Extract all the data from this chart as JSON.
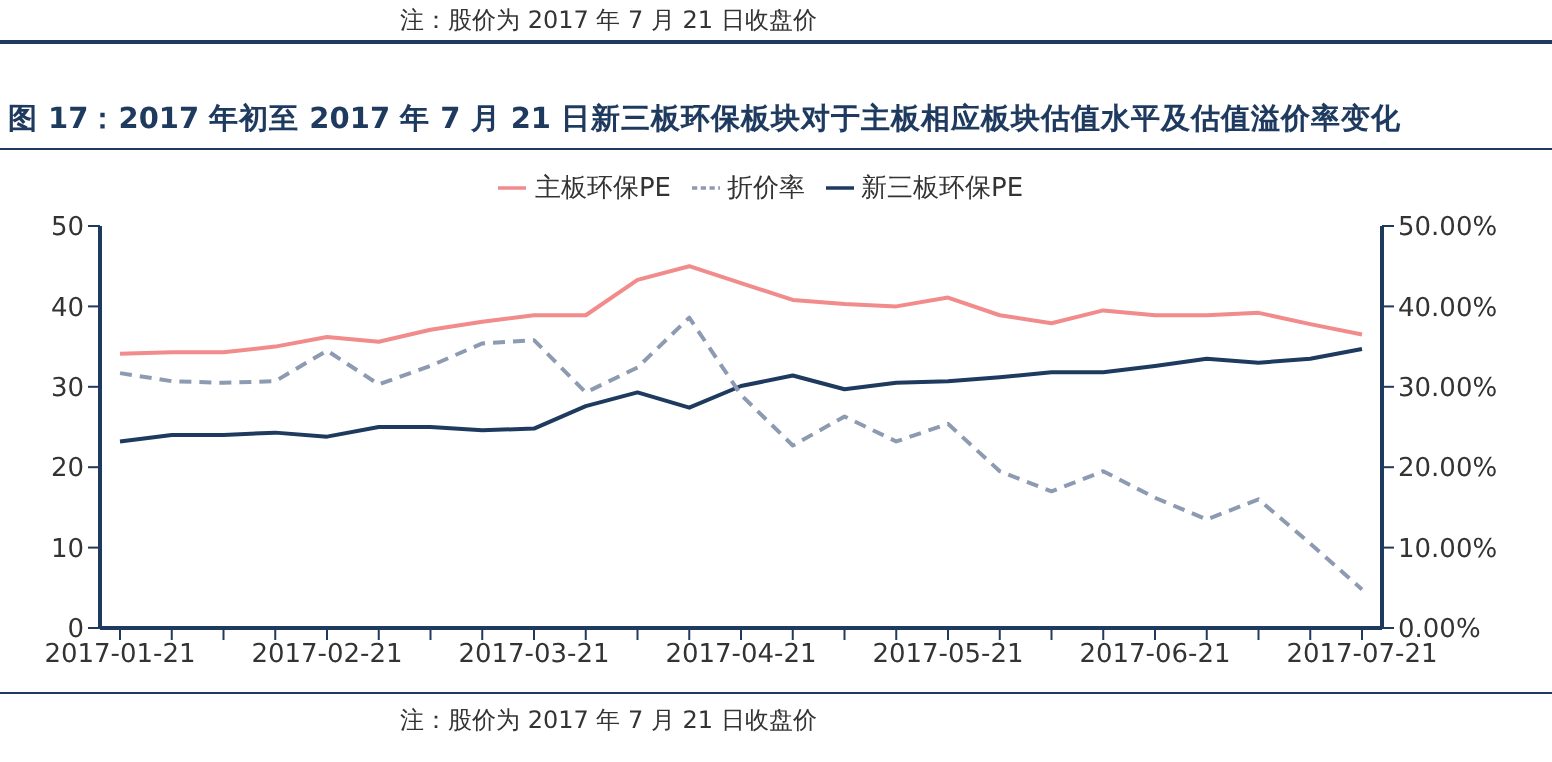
{
  "chart_data": {
    "type": "line",
    "title": "图 17：2017 年初至 2017 年 7 月 21 日新三板环保板块对于主板相应板块估值水平及估值溢价率变化",
    "annotations": [
      "注：股价为 2017 年 7 月 21 日收盘价",
      "注：股价为 2017 年 7 月 21 日收盘价"
    ],
    "categories": [
      "2017-01-21",
      null,
      null,
      null,
      "2017-02-21",
      null,
      null,
      null,
      "2017-03-21",
      null,
      null,
      null,
      "2017-04-21",
      null,
      null,
      null,
      "2017-05-21",
      null,
      null,
      null,
      "2017-06-21",
      null,
      null,
      null,
      "2017-07-21"
    ],
    "series": [
      {
        "name": "新三板环保PE",
        "color": "#1f3a5f",
        "values": [
          23.2,
          24,
          24,
          24.3,
          23.8,
          25,
          25,
          24.6,
          24.8,
          27.6,
          29.3,
          27.4,
          30.1,
          31.4,
          29.7,
          30.5,
          30.7,
          31.2,
          31.8,
          31.8,
          32.6,
          33.5,
          33,
          33.5,
          34.7
        ]
      },
      {
        "name": "主板环保PE",
        "color": "#f28b8b",
        "values": [
          34.1,
          34.3,
          34.3,
          35,
          36.2,
          35.6,
          37.1,
          38.1,
          38.9,
          38.9,
          43.3,
          45,
          42.9,
          40.8,
          40.3,
          40,
          41.1,
          38.9,
          37.9,
          39.5,
          38.9,
          38.9,
          39.2,
          37.8,
          36.5
        ]
      },
      {
        "name": "折价率",
        "color": "#8d9bb2",
        "axis": "y2",
        "line_style": "dashed",
        "values": [
          31.7,
          30.7,
          30.5,
          30.7,
          34.5,
          30.3,
          32.6,
          35.4,
          35.8,
          29.3,
          32.4,
          38.6,
          29,
          22.7,
          26.3,
          23.2,
          25.4,
          19.5,
          17,
          19.5,
          16.2,
          13.5,
          16,
          10.5,
          4.8
        ]
      }
    ],
    "ylim": [
      0,
      50
    ],
    "yticks": [
      0,
      10,
      20,
      30,
      40,
      50
    ],
    "y2lim": [
      0,
      50
    ],
    "y2ticks": [
      {
        "value": 0,
        "label": "0.00%"
      },
      {
        "value": 10,
        "label": "10.00%"
      },
      {
        "value": 20,
        "label": "20.00%"
      },
      {
        "value": 30,
        "label": "30.00%"
      },
      {
        "value": 40,
        "label": "40.00%"
      },
      {
        "value": 50,
        "label": "50.00%"
      }
    ],
    "legend": "top",
    "line_style": "solid",
    "marker": "none"
  }
}
